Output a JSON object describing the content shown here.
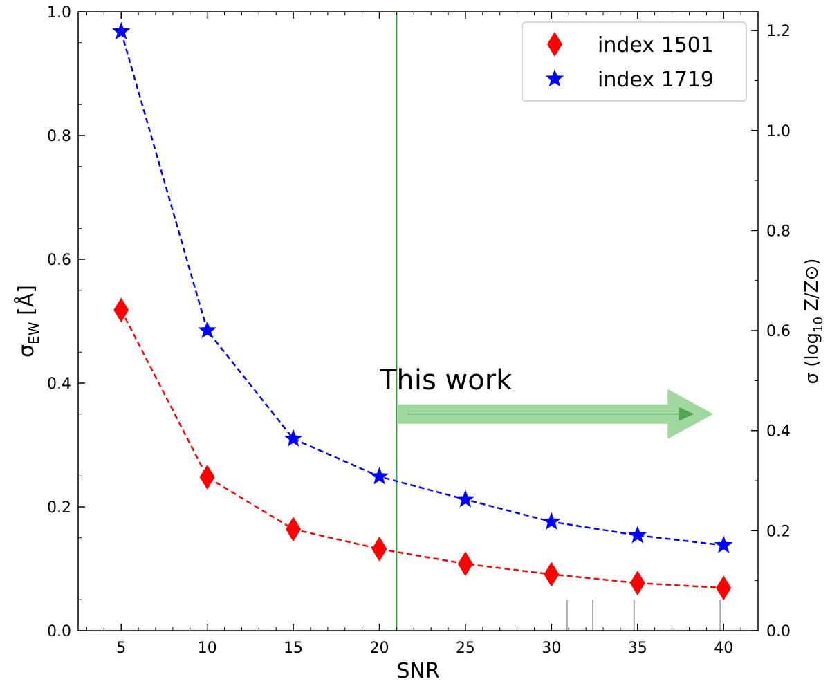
{
  "chart_data": {
    "type": "line",
    "xlabel": "SNR",
    "ylabel": "σ_EW [Å]",
    "ylabel_right": "σ (log10 Z/Z⊙)",
    "xlim": [
      2.5,
      42
    ],
    "ylim": [
      0,
      1.0
    ],
    "ylim_right": [
      0,
      1.2375
    ],
    "x_ticks": [
      5,
      10,
      15,
      20,
      25,
      30,
      35,
      40
    ],
    "y_ticks": [
      0.0,
      0.2,
      0.4,
      0.6,
      0.8,
      1.0
    ],
    "y_right_ticks": [
      0.0,
      0.2,
      0.4,
      0.6,
      0.8,
      1.0,
      1.2
    ],
    "grid": false,
    "legend_position": "top-right",
    "x": [
      5,
      10,
      15,
      20,
      25,
      30,
      35,
      40
    ],
    "series": [
      {
        "name": "index 1501",
        "marker": "diamond",
        "color": "#ff0000",
        "values": [
          0.518,
          0.248,
          0.164,
          0.132,
          0.108,
          0.091,
          0.077,
          0.069
        ]
      },
      {
        "name": "index 1719",
        "marker": "star",
        "color": "#0000ff",
        "values": [
          0.968,
          0.485,
          0.31,
          0.249,
          0.212,
          0.176,
          0.154,
          0.138
        ]
      }
    ],
    "vertical_line": {
      "x": 21,
      "color": "#2ca02c"
    },
    "annotation": {
      "text": "This work",
      "arrow_from_x": 21.1,
      "arrow_to_x": 39.4,
      "arrow_y": 0.35,
      "color": "#7fc97f"
    },
    "rug_marks_x": [
      30.9,
      32.4,
      34.8,
      39.8
    ]
  }
}
